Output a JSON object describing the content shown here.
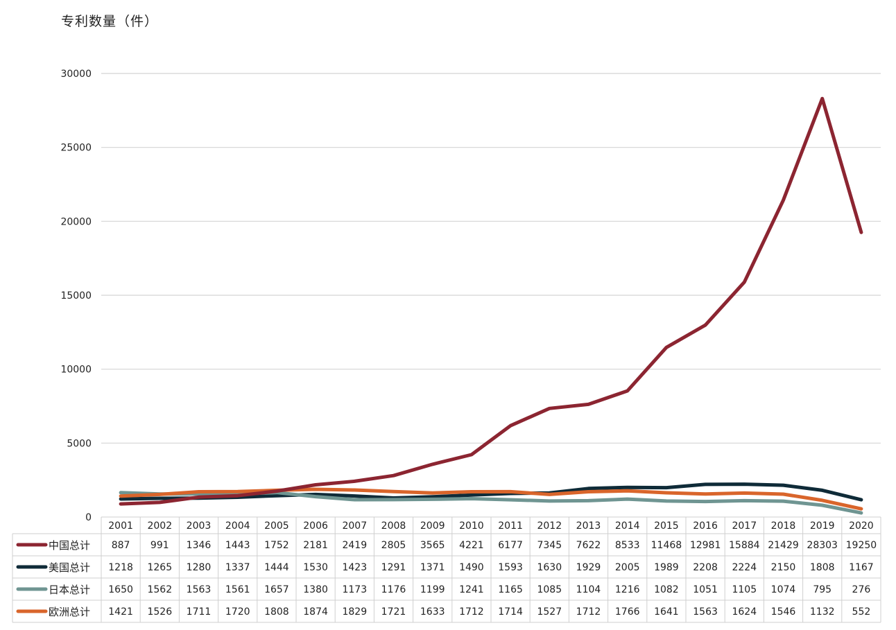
{
  "chart_data": {
    "type": "line",
    "ylabel": "专利数量（件）",
    "xlabel": "",
    "ylim": [
      0,
      30000
    ],
    "yticks": [
      0,
      5000,
      10000,
      15000,
      20000,
      25000,
      30000
    ],
    "grid": true,
    "legend": "data-table-left",
    "x": [
      "2001",
      "2002",
      "2003",
      "2004",
      "2005",
      "2006",
      "2007",
      "2008",
      "2009",
      "2010",
      "2011",
      "2012",
      "2013",
      "2014",
      "2015",
      "2016",
      "2017",
      "2018",
      "2019",
      "2020"
    ],
    "series": [
      {
        "name": "中国总计",
        "color": "#8c2531",
        "values": [
          887,
          991,
          1346,
          1443,
          1752,
          2181,
          2419,
          2805,
          3565,
          4221,
          6177,
          7345,
          7622,
          8533,
          11468,
          12981,
          15884,
          21429,
          28303,
          19250
        ]
      },
      {
        "name": "美国总计",
        "color": "#0f2b38",
        "values": [
          1218,
          1265,
          1280,
          1337,
          1444,
          1530,
          1423,
          1291,
          1371,
          1490,
          1593,
          1630,
          1929,
          2005,
          1989,
          2208,
          2224,
          2150,
          1808,
          1167
        ]
      },
      {
        "name": "日本总计",
        "color": "#6f9592",
        "values": [
          1650,
          1562,
          1563,
          1561,
          1657,
          1380,
          1173,
          1176,
          1199,
          1241,
          1165,
          1085,
          1104,
          1216,
          1082,
          1051,
          1105,
          1074,
          795,
          276
        ]
      },
      {
        "name": "欧洲总计",
        "color": "#d9652b",
        "values": [
          1421,
          1526,
          1711,
          1720,
          1808,
          1874,
          1829,
          1721,
          1633,
          1712,
          1714,
          1527,
          1712,
          1766,
          1641,
          1563,
          1624,
          1546,
          1132,
          552
        ]
      }
    ]
  }
}
